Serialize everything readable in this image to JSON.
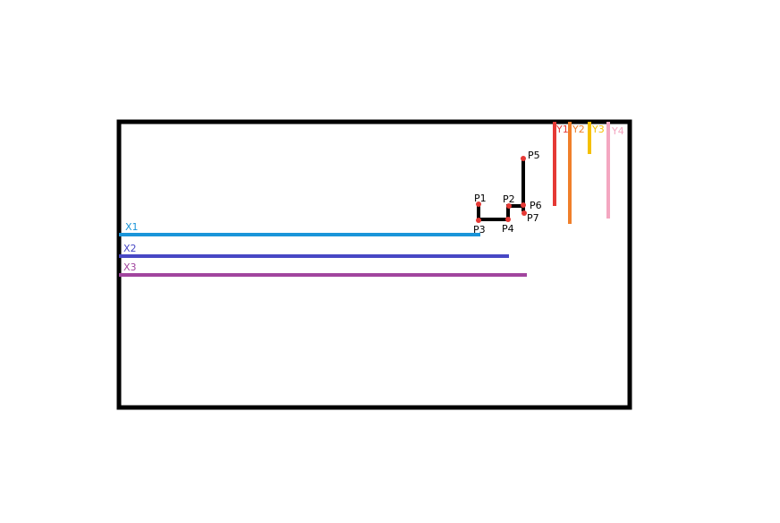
{
  "colors": {
    "frame": "#000000",
    "path": "#000000",
    "point": "#e53935",
    "X1": "#1a95d9",
    "X2": "#4747c4",
    "X3": "#a1459e",
    "Y1": "#e53935",
    "Y2": "#f07f2a",
    "Y3": "#f5c000",
    "Y4": "#f4a7c1"
  },
  "horizontal_lines": [
    {
      "label": "X1"
    },
    {
      "label": "X2"
    },
    {
      "label": "X3"
    }
  ],
  "vertical_lines": [
    {
      "label": "Y1"
    },
    {
      "label": "Y2"
    },
    {
      "label": "Y3"
    },
    {
      "label": "Y4"
    }
  ],
  "points": [
    {
      "label": "P1"
    },
    {
      "label": "P2"
    },
    {
      "label": "P3"
    },
    {
      "label": "P4"
    },
    {
      "label": "P5"
    },
    {
      "label": "P6"
    },
    {
      "label": "P7"
    }
  ]
}
